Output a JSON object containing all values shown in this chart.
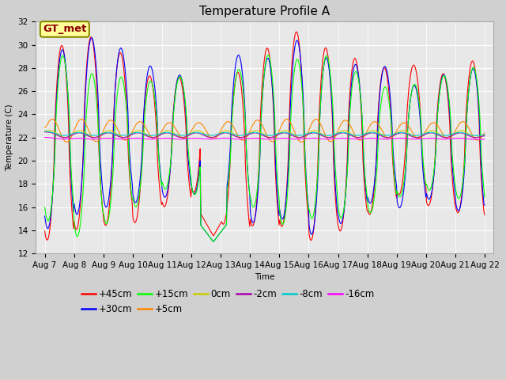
{
  "title": "Temperature Profile A",
  "xlabel": "Time",
  "ylabel": "Temperature (C)",
  "ylim": [
    12,
    32
  ],
  "x_tick_labels": [
    "Aug 7",
    "Aug 8",
    "Aug 9",
    "Aug 10",
    "Aug 11",
    "Aug 12",
    "Aug 13",
    "Aug 14",
    "Aug 15",
    "Aug 16",
    "Aug 17",
    "Aug 18",
    "Aug 19",
    "Aug 20",
    "Aug 21",
    "Aug 22"
  ],
  "series": [
    {
      "label": "+45cm",
      "color": "#ff0000"
    },
    {
      "label": "+30cm",
      "color": "#0000ff"
    },
    {
      "label": "+15cm",
      "color": "#00ff00"
    },
    {
      "label": "+5cm",
      "color": "#ff8800"
    },
    {
      "label": "0cm",
      "color": "#cccc00"
    },
    {
      "label": "-2cm",
      "color": "#aa00aa"
    },
    {
      "label": "-8cm",
      "color": "#00cccc"
    },
    {
      "label": "-16cm",
      "color": "#ff00ff"
    }
  ],
  "fig_bg_color": "#d0d0d0",
  "plot_bg_color": "#e8e8e8",
  "annotation_text": "GT_met",
  "annotation_bg": "#ffff99",
  "annotation_border": "#888800",
  "title_fontsize": 11,
  "tick_fontsize": 7.5,
  "legend_fontsize": 8.5
}
